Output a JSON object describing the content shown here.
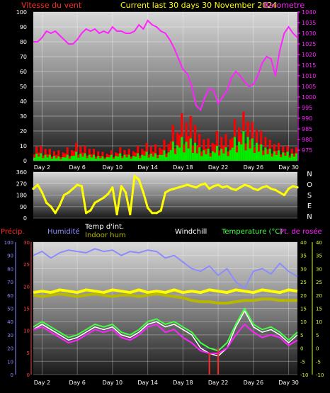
{
  "colors": {
    "wind_label": "#ff2a2a",
    "title": "#ffff00",
    "baro": "#ff22ff",
    "wind_avg": "#00ee00",
    "gust": "#ff0000",
    "direction": "#ffff00",
    "precip": "#ff2a2a",
    "humidity": "#8c8cff",
    "temp_int": "#ffffff",
    "indoor_hum": "#b8b800",
    "windchill": "#ffffff",
    "temperature": "#44ff44",
    "dewpoint": "#ff22ff",
    "axis_text": "#ffffff",
    "temp_axis": "#ccff33",
    "hum_axis": "#8c8cff",
    "precip_axis": "#ff4444"
  },
  "header": {
    "wind_label": "Vitesse du vent",
    "title": "Current last 30 days 30 November 2024",
    "baro_label": "Barometre"
  },
  "compass": [
    "N",
    "O",
    "S",
    "E",
    "N"
  ],
  "lower_legend": {
    "precip": "Précip.",
    "humidity": "Humidité",
    "temp_int": "Temp d'int.",
    "indoor_hum": "Indoor hum",
    "windchill": "Windchill",
    "temperature": "Temperature (°C)",
    "dewpoint": "Pt. de rosée"
  },
  "chart_data": [
    {
      "type": "line",
      "title": "Current last 30 days 30 November 2024",
      "x_tick_labels": [
        "Day 2",
        "Day 6",
        "Day 10",
        "Day 14",
        "Day 18",
        "Day 22",
        "Day 26",
        "Day 30"
      ],
      "x_tick_days": [
        2,
        6,
        10,
        14,
        18,
        22,
        26,
        30
      ],
      "xlim": [
        1,
        31
      ],
      "left_axis": {
        "label": "Vitesse du vent",
        "range": [
          0,
          100
        ],
        "ticks": [
          0,
          10,
          20,
          30,
          40,
          50,
          60,
          70,
          80,
          90,
          100
        ]
      },
      "right_axis": {
        "label": "Barometre",
        "range": [
          970,
          1040
        ],
        "ticks": [
          975,
          980,
          985,
          990,
          995,
          1000,
          1005,
          1010,
          1015,
          1020,
          1025,
          1030,
          1035,
          1040
        ]
      },
      "series": [
        {
          "name": "Barometre",
          "axis": "right",
          "x": [
            1,
            1.5,
            2,
            2.5,
            3,
            3.5,
            4,
            4.5,
            5,
            5.5,
            6,
            6.5,
            7,
            7.5,
            8,
            8.5,
            9,
            9.5,
            10,
            10.5,
            11,
            11.5,
            12,
            12.5,
            13,
            13.5,
            14,
            14.5,
            15,
            15.5,
            16,
            16.5,
            17,
            17.5,
            18,
            18.5,
            19,
            19.5,
            20,
            20.5,
            21,
            21.5,
            22,
            22.5,
            23,
            23.5,
            24,
            24.5,
            25,
            25.5,
            26,
            26.5,
            27,
            27.5,
            28,
            28.5,
            29,
            29.5,
            30,
            30.5,
            31
          ],
          "values": [
            1026,
            1026,
            1028,
            1031,
            1030,
            1031,
            1029,
            1027,
            1025,
            1025,
            1027,
            1030,
            1032,
            1031,
            1032,
            1030,
            1031,
            1030,
            1033,
            1031,
            1031,
            1030,
            1030,
            1031,
            1034,
            1032,
            1036,
            1034,
            1033,
            1031,
            1030,
            1027,
            1023,
            1018,
            1013,
            1011,
            1005,
            996,
            994,
            1000,
            1004,
            1003,
            997,
            1000,
            1003,
            1009,
            1012,
            1010,
            1007,
            1005,
            1006,
            1010,
            1016,
            1019,
            1018,
            1010,
            1022,
            1030,
            1033,
            1030,
            1028
          ]
        },
        {
          "name": "Gust",
          "axis": "left",
          "note": "daily maxima of red gust bars",
          "x": [
            1,
            2,
            3,
            4,
            5,
            6,
            7,
            8,
            9,
            10,
            11,
            12,
            13,
            14,
            15,
            16,
            17,
            18,
            19,
            20,
            21,
            22,
            23,
            24,
            25,
            26,
            27,
            28,
            29,
            30,
            31
          ],
          "values": [
            12,
            10,
            8,
            7,
            9,
            12,
            10,
            8,
            6,
            7,
            9,
            8,
            10,
            12,
            11,
            14,
            24,
            32,
            30,
            18,
            15,
            20,
            18,
            28,
            33,
            26,
            20,
            14,
            12,
            10,
            9
          ]
        },
        {
          "name": "Wind avg",
          "axis": "left",
          "note": "daily maxima of green average-wind bars",
          "x": [
            1,
            2,
            3,
            4,
            5,
            6,
            7,
            8,
            9,
            10,
            11,
            12,
            13,
            14,
            15,
            16,
            17,
            18,
            19,
            20,
            21,
            22,
            23,
            24,
            25,
            26,
            27,
            28,
            29,
            30,
            31
          ],
          "values": [
            6,
            5,
            4,
            3,
            4,
            6,
            5,
            4,
            3,
            4,
            5,
            4,
            5,
            6,
            5,
            7,
            13,
            16,
            15,
            9,
            8,
            10,
            9,
            16,
            20,
            15,
            11,
            8,
            7,
            6,
            5
          ]
        }
      ]
    },
    {
      "type": "scatter",
      "series_name": "Direction",
      "xlim": [
        1,
        31
      ],
      "y_axis": {
        "range": [
          0,
          360
        ],
        "ticks": [
          0,
          90,
          180,
          270,
          360
        ],
        "tick_labels": [
          "0",
          "90",
          "180",
          "270",
          "360"
        ]
      },
      "x": [
        1,
        1.5,
        2,
        2.5,
        3,
        3.5,
        4,
        4.5,
        5,
        5.5,
        6,
        6.5,
        7,
        7.5,
        8,
        8.5,
        9,
        9.5,
        10,
        10.5,
        11,
        11.5,
        12,
        12.5,
        13,
        13.5,
        14,
        14.5,
        15,
        15.5,
        16,
        16.5,
        17,
        17.5,
        18,
        18.5,
        19,
        19.5,
        20,
        20.5,
        21,
        21.5,
        22,
        22.5,
        23,
        23.5,
        24,
        24.5,
        25,
        25.5,
        26,
        26.5,
        27,
        27.5,
        28,
        28.5,
        29,
        29.5,
        30,
        30.5,
        31
      ],
      "values": [
        230,
        260,
        200,
        120,
        90,
        40,
        100,
        180,
        200,
        230,
        260,
        250,
        40,
        60,
        120,
        140,
        160,
        190,
        240,
        30,
        250,
        200,
        30,
        330,
        300,
        200,
        80,
        40,
        40,
        60,
        200,
        220,
        230,
        240,
        250,
        260,
        250,
        240,
        260,
        270,
        230,
        250,
        260,
        240,
        250,
        230,
        220,
        240,
        260,
        250,
        230,
        220,
        240,
        250,
        230,
        220,
        200,
        180,
        230,
        250,
        240
      ]
    },
    {
      "type": "line",
      "xlim": [
        1,
        31
      ],
      "x_tick_labels": [
        "Day 2",
        "Day 6",
        "Day 10",
        "Day 14",
        "Day 18",
        "Day 22",
        "Day 26",
        "Day 30"
      ],
      "x_tick_days": [
        2,
        6,
        10,
        14,
        18,
        22,
        26,
        30
      ],
      "axes": {
        "humidity": {
          "range": [
            0,
            100
          ],
          "ticks": [
            0,
            10,
            20,
            30,
            40,
            50,
            60,
            70,
            80,
            90,
            100
          ]
        },
        "precip": {
          "range": [
            0,
            30
          ],
          "ticks": [
            0,
            5,
            10,
            15,
            20,
            25,
            30
          ]
        },
        "temperature_left": {
          "range": [
            -10,
            40
          ],
          "ticks": [
            -10,
            -5,
            0,
            5,
            10,
            15,
            20,
            25,
            30,
            35,
            40
          ]
        },
        "temperature_right": {
          "range": [
            -10,
            40
          ],
          "ticks": [
            -10,
            -5,
            0,
            5,
            10,
            15,
            20,
            25,
            30,
            35,
            40
          ]
        }
      },
      "series": [
        {
          "name": "Humidité",
          "axis": "humidity",
          "x": [
            1,
            2,
            3,
            4,
            5,
            6,
            7,
            8,
            9,
            10,
            11,
            12,
            13,
            14,
            15,
            16,
            17,
            18,
            19,
            20,
            21,
            22,
            23,
            24,
            25,
            26,
            27,
            28,
            29,
            30,
            31
          ],
          "values": [
            90,
            93,
            88,
            92,
            94,
            93,
            92,
            95,
            93,
            94,
            90,
            93,
            92,
            94,
            93,
            88,
            90,
            85,
            80,
            78,
            82,
            75,
            80,
            70,
            65,
            78,
            80,
            76,
            84,
            78,
            74
          ]
        },
        {
          "name": "Temp d'int.",
          "axis": "temperature_right",
          "x": [
            1,
            2,
            3,
            4,
            5,
            6,
            7,
            8,
            9,
            10,
            11,
            12,
            13,
            14,
            15,
            16,
            17,
            18,
            19,
            20,
            21,
            22,
            23,
            24,
            25,
            26,
            27,
            28,
            29,
            30,
            31
          ],
          "values": [
            21,
            21.5,
            21,
            22,
            21.5,
            21,
            22,
            21.5,
            21,
            22,
            21.5,
            21,
            22,
            21,
            21.5,
            21,
            22,
            21,
            21.5,
            21,
            22,
            21.5,
            21,
            22,
            21.5,
            21,
            22,
            21.5,
            21,
            22,
            21.5
          ]
        },
        {
          "name": "Indoor hum",
          "axis": "humidity",
          "x": [
            1,
            2,
            3,
            4,
            5,
            6,
            7,
            8,
            9,
            10,
            11,
            12,
            13,
            14,
            15,
            16,
            17,
            18,
            19,
            20,
            21,
            22,
            23,
            24,
            25,
            26,
            27,
            28,
            29,
            30,
            31
          ],
          "values": [
            60,
            59,
            60,
            61,
            60,
            59,
            60,
            61,
            60,
            59,
            60,
            60,
            59,
            60,
            61,
            60,
            59,
            58,
            56,
            55,
            55,
            54,
            54,
            55,
            56,
            56,
            57,
            57,
            56,
            56,
            56
          ]
        },
        {
          "name": "Temperature (°C)",
          "axis": "temperature_right",
          "x": [
            1,
            2,
            3,
            4,
            5,
            6,
            7,
            8,
            9,
            10,
            11,
            12,
            13,
            14,
            15,
            16,
            17,
            18,
            19,
            20,
            21,
            22,
            23,
            24,
            25,
            26,
            27,
            28,
            29,
            30,
            31
          ],
          "values": [
            8,
            10,
            8,
            6,
            4,
            5,
            7,
            9,
            8,
            9,
            6,
            5,
            7,
            10,
            11,
            9,
            10,
            8,
            6,
            2,
            0,
            -1,
            2,
            9,
            15,
            9,
            7,
            8,
            6,
            3,
            6
          ]
        },
        {
          "name": "Windchill",
          "axis": "temperature_right",
          "x": [
            1,
            2,
            3,
            4,
            5,
            6,
            7,
            8,
            9,
            10,
            11,
            12,
            13,
            14,
            15,
            16,
            17,
            18,
            19,
            20,
            21,
            22,
            23,
            24,
            25,
            26,
            27,
            28,
            29,
            30,
            31
          ],
          "values": [
            7,
            9,
            7,
            5,
            3,
            4,
            6,
            8,
            7,
            8,
            5,
            4,
            6,
            9,
            10,
            8,
            9,
            7,
            5,
            0,
            -2,
            -3,
            0,
            8,
            14,
            8,
            6,
            7,
            5,
            2,
            5
          ]
        },
        {
          "name": "Pt. de rosée",
          "axis": "temperature_right",
          "x": [
            1,
            2,
            3,
            4,
            5,
            6,
            7,
            8,
            9,
            10,
            11,
            12,
            13,
            14,
            15,
            16,
            17,
            18,
            19,
            20,
            21,
            22,
            23,
            24,
            25,
            26,
            27,
            28,
            29,
            30,
            31
          ],
          "values": [
            7,
            8,
            6,
            4,
            2,
            3,
            5,
            7,
            6,
            7,
            4,
            3,
            5,
            8,
            9,
            6,
            7,
            4,
            2,
            -1,
            -2,
            -2,
            0,
            5,
            9,
            6,
            4,
            5,
            4,
            1,
            3
          ]
        },
        {
          "name": "Précip.",
          "axis": "precip",
          "x": [
            21,
            22
          ],
          "values": [
            5,
            6
          ]
        }
      ]
    }
  ]
}
